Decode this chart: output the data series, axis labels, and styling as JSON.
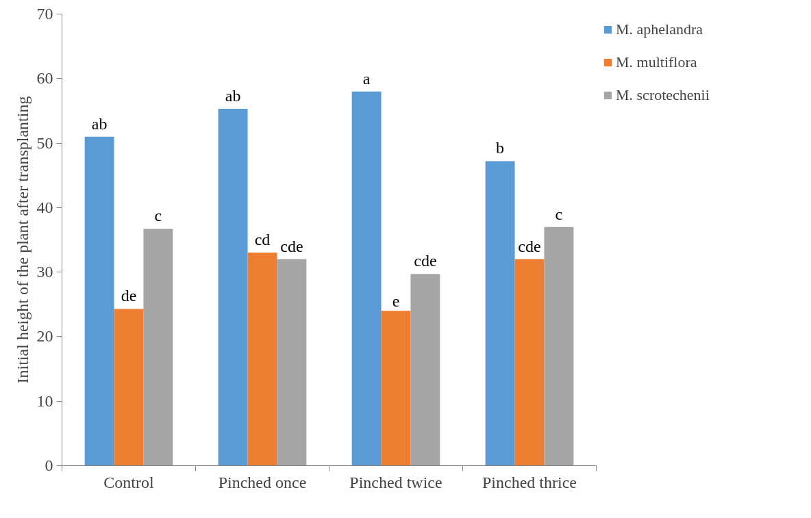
{
  "chart_data": {
    "type": "bar",
    "ylabel": "Initial height of the plant after transplanting",
    "categories": [
      "Control",
      "Pinched once",
      "Pinched twice",
      "Pinched thrice"
    ],
    "series": [
      {
        "name": "M. aphelandra",
        "color": "#5b9bd5",
        "values": [
          51,
          55.3,
          58,
          47.2
        ],
        "value_labels": [
          "ab",
          "ab",
          "a",
          "b"
        ]
      },
      {
        "name": "M. multiflora",
        "color": "#ed7d31",
        "values": [
          24.3,
          33,
          24,
          32
        ],
        "value_labels": [
          "de",
          "cd",
          "e",
          "cde"
        ]
      },
      {
        "name": "M. scrotechenii",
        "color": "#a5a5a5",
        "values": [
          36.7,
          32,
          29.7,
          37
        ],
        "value_labels": [
          "c",
          "cde",
          "cde",
          "c"
        ]
      }
    ],
    "ylim": [
      0,
      70
    ],
    "yticks": [
      0,
      10,
      20,
      30,
      40,
      50,
      60,
      70
    ],
    "grid": false,
    "legend": "top right"
  }
}
